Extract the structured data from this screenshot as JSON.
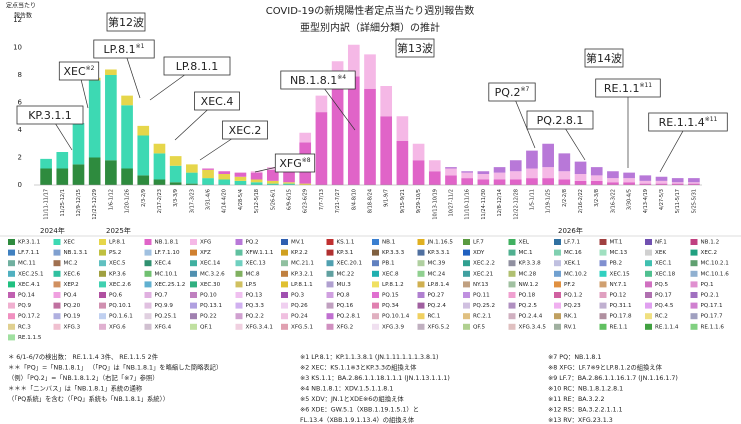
{
  "chart_data": {
    "type": "stacked_bar",
    "title": "COVID-19の新規陽性者定点当たり週別報告数",
    "subtitle": "亜型別内訳（詳細分類）の推計",
    "y_label": [
      "定点当たり",
      "報告数"
    ],
    "year_labels": [
      "2024年",
      "2025年",
      "2026年"
    ],
    "categories": [
      "11/11-11/17",
      "11/25-12/1",
      "12/9-12/15",
      "12/23-12/29",
      "1/6-1/12",
      "1/20-1/26",
      "2/3-2/9",
      "2/17-2/23",
      "3/3-3/9",
      "3/17-3/23",
      "3/31-4/6",
      "4/14-4/20",
      "4/28-5/4",
      "5/12-5/18",
      "5/26-6/1",
      "6/9-6/15",
      "6/23-6/29",
      "7/7-7/13",
      "7/21-7/27",
      "8/4-8/10",
      "8/18-8/24",
      "9/1-9/7",
      "9/15-9/21",
      "9/29-10/5",
      "10/13-10/19",
      "10/27-11/2",
      "11/10-11/16",
      "11/24-11/30",
      "12/8-12/14",
      "12/22-12/28",
      "1/5-1/11",
      "1/19-1/25",
      "2/2-2/8",
      "2/16-2/22",
      "3/2-3/8",
      "3/16-3/22",
      "3/30-4/5",
      "4/13-4/19",
      "4/27-5/3",
      "5/11-5/17",
      "5/25-5/31"
    ],
    "series": [
      {
        "name": "KP.3.1.1",
        "color": "#2e8b3e",
        "values": [
          1.2,
          1.2,
          1.5,
          2.0,
          1.8,
          1.2,
          0.7,
          0.4,
          0.2,
          0.1,
          0,
          0,
          0,
          0,
          0,
          0,
          0,
          0,
          0,
          0,
          0,
          0,
          0,
          0,
          0,
          0,
          0,
          0,
          0,
          0,
          0,
          0,
          0,
          0,
          0,
          0,
          0,
          0,
          0,
          0,
          0
        ]
      },
      {
        "name": "XEC",
        "color": "#3dd9b3",
        "values": [
          0.7,
          1.2,
          3.0,
          5.6,
          6.2,
          4.6,
          2.9,
          1.9,
          1.2,
          0.8,
          0.5,
          0.4,
          0.3,
          0.2,
          0.1,
          0.1,
          0,
          0,
          0,
          0,
          0,
          0,
          0,
          0,
          0,
          0,
          0,
          0,
          0,
          0,
          0,
          0,
          0,
          0,
          0,
          0,
          0,
          0,
          0,
          0,
          0
        ]
      },
      {
        "name": "LP.8.1",
        "color": "#e6d64a",
        "values": [
          0,
          0,
          0,
          0.2,
          0.4,
          0.7,
          0.7,
          0.7,
          0.7,
          0.6,
          0.6,
          0.4,
          0.3,
          0.2,
          0.2,
          0.1,
          0.1,
          0,
          0,
          0,
          0,
          0,
          0,
          0,
          0,
          0,
          0,
          0,
          0,
          0,
          0,
          0,
          0,
          0,
          0,
          0,
          0,
          0,
          0,
          0,
          0
        ]
      },
      {
        "name": "NB.1.8.1",
        "color": "#e064c8",
        "values": [
          0,
          0,
          0,
          0,
          0,
          0,
          0,
          0,
          0,
          0,
          0.1,
          0.2,
          0.3,
          0.5,
          0.8,
          1.6,
          3.0,
          5.3,
          7.2,
          7.9,
          7.0,
          5.0,
          3.2,
          1.8,
          1.0,
          0.7,
          0.5,
          0.4,
          0.4,
          0.4,
          0.5,
          0.5,
          0.4,
          0.3,
          0.3,
          0.2,
          0.2,
          0.1,
          0.1,
          0.1,
          0.1
        ]
      },
      {
        "name": "XFG",
        "color": "#f5b8e6",
        "values": [
          0,
          0,
          0,
          0,
          0,
          0,
          0,
          0,
          0,
          0,
          0,
          0,
          0,
          0.1,
          0.2,
          0.4,
          0.7,
          1.2,
          1.8,
          2.3,
          2.5,
          2.2,
          1.8,
          1.2,
          0.8,
          0.5,
          0.4,
          0.4,
          0.5,
          0.6,
          0.7,
          0.8,
          0.6,
          0.5,
          0.4,
          0.3,
          0.3,
          0.2,
          0.2,
          0.1,
          0.1
        ]
      },
      {
        "name": "PQ.2",
        "color": "#b878d8",
        "values": [
          0,
          0,
          0,
          0,
          0,
          0,
          0,
          0,
          0,
          0,
          0,
          0,
          0,
          0,
          0,
          0,
          0,
          0,
          0,
          0,
          0,
          0,
          0,
          0,
          0,
          0.1,
          0.1,
          0.2,
          0.4,
          0.8,
          1.3,
          1.7,
          1.3,
          0.9,
          0.6,
          0.5,
          0.4,
          0.4,
          0.3,
          0.3,
          0.3
        ]
      }
    ],
    "ylim": [
      0,
      12
    ],
    "yticks": [
      0,
      2,
      4,
      6,
      8,
      10,
      12
    ],
    "grid": false,
    "annotations": [
      {
        "text": "第12波"
      },
      {
        "text": "LP.8.1",
        "note": "※1"
      },
      {
        "text": "XEC",
        "note": "※2"
      },
      {
        "text": "LP.8.1.1"
      },
      {
        "text": "KP.3.1.1"
      },
      {
        "text": "XEC.4"
      },
      {
        "text": "XEC.2"
      },
      {
        "text": "XFG",
        "note": "※8"
      },
      {
        "text": "NB.1.8.1",
        "note": "※4"
      },
      {
        "text": "第13波"
      },
      {
        "text": "PQ.2",
        "note": "※7"
      },
      {
        "text": "第14波"
      },
      {
        "text": "RE.1.1",
        "note": "※11"
      },
      {
        "text": "PQ.2.8.1"
      },
      {
        "text": "RE.1.1.4",
        "note": "※11"
      }
    ],
    "legend_items": [
      [
        "MV.1",
        "#2f5fb0"
      ],
      [
        "KS.1.1",
        "#c03030"
      ],
      [
        "NB.1",
        "#3a7fd0"
      ],
      [
        "JN.1.16.5",
        "#e0b020"
      ],
      [
        "LF.7",
        "#5a9a40"
      ],
      [
        "XEL",
        "#40b060"
      ],
      [
        "LF.7.1",
        "#3070a0"
      ],
      [
        "MT.1",
        "#a04040"
      ],
      [
        "NF.1",
        "#7050b0"
      ],
      [
        "NB.1.2",
        "#c04080"
      ],
      [
        "LF.7.1.1",
        "#4080c0"
      ],
      [
        "NB.1.3.1",
        "#80a0d0"
      ],
      [
        "PS.2",
        "#c0c040"
      ],
      [
        "LF.7.1.10",
        "#a0c0e0"
      ],
      [
        "XFZ",
        "#d08030"
      ],
      [
        "XFW.1.1.1",
        "#60c0a0"
      ],
      [
        "KP.2.2",
        "#d0a020"
      ],
      [
        "KP.3.1",
        "#b03030"
      ],
      [
        "KP.3.3.3",
        "#806040"
      ],
      [
        "KP.3.3.1",
        "#5070a0"
      ],
      [
        "XDY",
        "#2060c0"
      ],
      [
        "MC.1",
        "#50b090"
      ],
      [
        "MC.16",
        "#80d0b0"
      ],
      [
        "MC.13",
        "#a0e0c0"
      ],
      [
        "XEK",
        "#d0d0d0"
      ],
      [
        "XEC.2",
        "#20a080"
      ],
      [
        "MC.11",
        "#70b0a0"
      ],
      [
        "MC.2",
        "#a07050"
      ],
      [
        "XEC.5",
        "#60c0c0"
      ],
      [
        "XEC.4",
        "#309070"
      ],
      [
        "XEC.14",
        "#40b0a0"
      ],
      [
        "XEC.13",
        "#70d0c0"
      ],
      [
        "MC.21.1",
        "#90c0a0"
      ],
      [
        "XEC.20.1",
        "#50a0b0"
      ],
      [
        "PB.1",
        "#6080c0"
      ],
      [
        "MC.39",
        "#b0d0a0"
      ],
      [
        "XEC.2.2",
        "#30a090"
      ],
      [
        "KP.3.3.8",
        "#9090a0"
      ],
      [
        "XEK.1",
        "#c0c0e0"
      ],
      [
        "PB.2",
        "#8090d0"
      ],
      [
        "XEC.1",
        "#40c0b0"
      ],
      [
        "MC.10.2.1",
        "#60a070"
      ],
      [
        "XEC.25.1",
        "#50b0c0"
      ],
      [
        "XEC.6",
        "#30c0a0"
      ],
      [
        "KP.3.6",
        "#a0a040"
      ],
      [
        "MC.10.1",
        "#70c070"
      ],
      [
        "MC.3.2.6",
        "#5090b0"
      ],
      [
        "MC.8",
        "#80b060"
      ],
      [
        "KP.3.2.1",
        "#c08040"
      ],
      [
        "MC.22",
        "#60a0a0"
      ],
      [
        "XEC.8",
        "#20b0b0"
      ],
      [
        "MC.24",
        "#90d090"
      ],
      [
        "XEC.21",
        "#40a0a0"
      ],
      [
        "MC.28",
        "#b0c070"
      ],
      [
        "MC.10.2",
        "#70a0d0"
      ],
      [
        "XEC.15",
        "#30d0c0"
      ],
      [
        "XEC.18",
        "#50c090"
      ],
      [
        "MC.10.1.6",
        "#90b0d0"
      ],
      [
        "XEC.4.1",
        "#20c080"
      ],
      [
        "XEP.2",
        "#d09060"
      ],
      [
        "XEC.2.6",
        "#40d0b0"
      ],
      [
        "XEC.25.1.2",
        "#60b0d0"
      ],
      [
        "XEC.30",
        "#30b080"
      ],
      [
        "LP.5",
        "#d0c060"
      ],
      [
        "LP.8.1.1",
        "#e0c030"
      ],
      [
        "MU.3",
        "#b0a0d0"
      ],
      [
        "LP.8.1.2",
        "#f0e060"
      ],
      [
        "LP.8.1.4",
        "#d0b050"
      ],
      [
        "NY.13",
        "#c0a080"
      ],
      [
        "NW.1.2",
        "#a0c0a0"
      ],
      [
        "PF.2",
        "#e09040"
      ],
      [
        "NY.7.1",
        "#d0a070"
      ],
      [
        "PQ.5",
        "#d070c0"
      ],
      [
        "PQ.1",
        "#e090d0"
      ],
      [
        "PQ.14",
        "#c060b0"
      ],
      [
        "PQ.4",
        "#f0a0e0"
      ],
      [
        "PQ.6",
        "#b050a0"
      ],
      [
        "PQ.7",
        "#e0b0e0"
      ],
      [
        "PQ.10",
        "#c080c0"
      ],
      [
        "PQ.13",
        "#f0c0f0"
      ],
      [
        "PQ.3",
        "#a050b0"
      ],
      [
        "PQ.8",
        "#d0a0e0"
      ],
      [
        "PQ.15",
        "#e070d0"
      ],
      [
        "PQ.27",
        "#b080d0"
      ],
      [
        "PQ.11",
        "#c090e0"
      ],
      [
        "PQ.18",
        "#f0a0d0"
      ],
      [
        "PQ.1.2",
        "#d060a0"
      ],
      [
        "PQ.12",
        "#e0a0c0"
      ],
      [
        "PQ.17",
        "#b070b0"
      ],
      [
        "PQ.2.1",
        "#a070c0"
      ],
      [
        "PQ.9",
        "#f0b0d0"
      ],
      [
        "PQ.20",
        "#c070a0"
      ],
      [
        "PQ.10.1",
        "#d090b0"
      ],
      [
        "PQ.9.9",
        "#e0c0e0"
      ],
      [
        "PQ.13.1",
        "#b0a0e0"
      ],
      [
        "PQ.3.3",
        "#d0b0f0"
      ],
      [
        "PQ.26",
        "#f0d0f0"
      ],
      [
        "PQ.16",
        "#c0a0c0"
      ],
      [
        "PQ.34",
        "#e080b0"
      ],
      [
        "PQ.2.4",
        "#a060a0"
      ],
      [
        "PQ.25.2",
        "#d0c0e0"
      ],
      [
        "PQ.2.5",
        "#b090c0"
      ],
      [
        "PQ.23",
        "#f0b0f0"
      ],
      [
        "PQ.31.1",
        "#c0b0d0"
      ],
      [
        "PQ.4.5",
        "#e0a0f0"
      ],
      [
        "PQ.17.1",
        "#d080d0"
      ],
      [
        "PQ.17.2",
        "#f090c0"
      ],
      [
        "PQ.19",
        "#b0b0e0"
      ],
      [
        "PQ.1.6.1",
        "#c0d0f0"
      ],
      [
        "PQ.25.1",
        "#e0d0e0"
      ],
      [
        "PQ.22",
        "#a080b0"
      ],
      [
        "PQ.2.2",
        "#d0a0d0"
      ],
      [
        "PQ.24",
        "#f0c0e0"
      ],
      [
        "PQ.2.8.1",
        "#c070d0"
      ],
      [
        "PQ.10.1.4",
        "#e0b0c0"
      ],
      [
        "RC.1",
        "#f0d060"
      ],
      [
        "RC.2.1",
        "#e0c080"
      ],
      [
        "PQ.2.4.4",
        "#d0b0c0"
      ],
      [
        "RK.1",
        "#c0a060"
      ],
      [
        "PQ.17.8",
        "#b090a0"
      ],
      [
        "RC.2",
        "#f0e080"
      ],
      [
        "PQ.17.7",
        "#a0a0c0"
      ],
      [
        "RC.3",
        "#e0d090"
      ],
      [
        "XFG.3",
        "#f0c0d0"
      ],
      [
        "XFG.6",
        "#e0b0d0"
      ],
      [
        "XFG.4",
        "#d0c0d0"
      ],
      [
        "QF.1",
        "#c0e0a0"
      ],
      [
        "XFG.3.4.1",
        "#f0d0e0"
      ],
      [
        "XFG.5.1",
        "#e0a0b0"
      ],
      [
        "XFG.2",
        "#d090c0"
      ],
      [
        "XFG.3.9",
        "#f0e0f0"
      ],
      [
        "XFG.5.2",
        "#c0b0c0"
      ],
      [
        "QF.5",
        "#b0d090"
      ],
      [
        "XFG.3.4.5",
        "#e0c0c0"
      ],
      [
        "RV.1",
        "#a0b0a0"
      ],
      [
        "RE.1.1",
        "#60c060"
      ],
      [
        "RE.1.1.4",
        "#40a040"
      ],
      [
        "RE.1.1.6",
        "#80d080"
      ],
      [
        "RE.1.1.5",
        "#a0e0a0"
      ]
    ]
  },
  "footnotes": {
    "left": [
      "＊ 6/1-6/7の検出数： RE.1.1.4 3件、 RE.1.1.5 2件",
      "＊＊「PQ」=「NB.1.8.1」 （「PQ」は「NB.1.8.1」を略縮した簡略表記）",
      "（例）「PQ.2」=「NB.1.8.1.2」（右記「※7」参照）",
      "＊＊＊「ニンバス」は「NB.1.8.1」系統の通称",
      "（「PQ系統」を含む（「PQ」系統も「NB.1.8.1」系統））"
    ],
    "middle": [
      "※1 LP.8.1：KP.1.1.3.8.1 (JN.1.11.1.1.1.3.8.1)",
      "※2 XEC：KS.1.1※3とKP.3.3の組換え体",
      "※3 KS.1.1：BA.2.86.1.1.18.1.1.1 (JN.1.13.1.1.1)",
      "※4 NB.1.8.1：XDV.1.5.1.1.8.1",
      "※5 XDV：JN.1とXDE※6の組換え体",
      "※6 XDE：GW.5.1（XBB.1.19.1.5.1）と",
      "FL.13.4（XBB.1.9.1.13.4）の組換え体"
    ],
    "right": [
      "※7 PQ：NB.1.8.1",
      "※8 XFG：LF.7※9とLP.8.1.2の組換え体",
      "※9 LF.7：BA.2.86.1.1.16.1.7 (JN.1.16.1.7)",
      "※10 RC：NB.1.8.1.2.8.1",
      "※11 RE：BA.3.2.2",
      "※12 RS：BA.3.2.2.1.1.1",
      "※13 RV：XFG.23.1.3"
    ]
  }
}
